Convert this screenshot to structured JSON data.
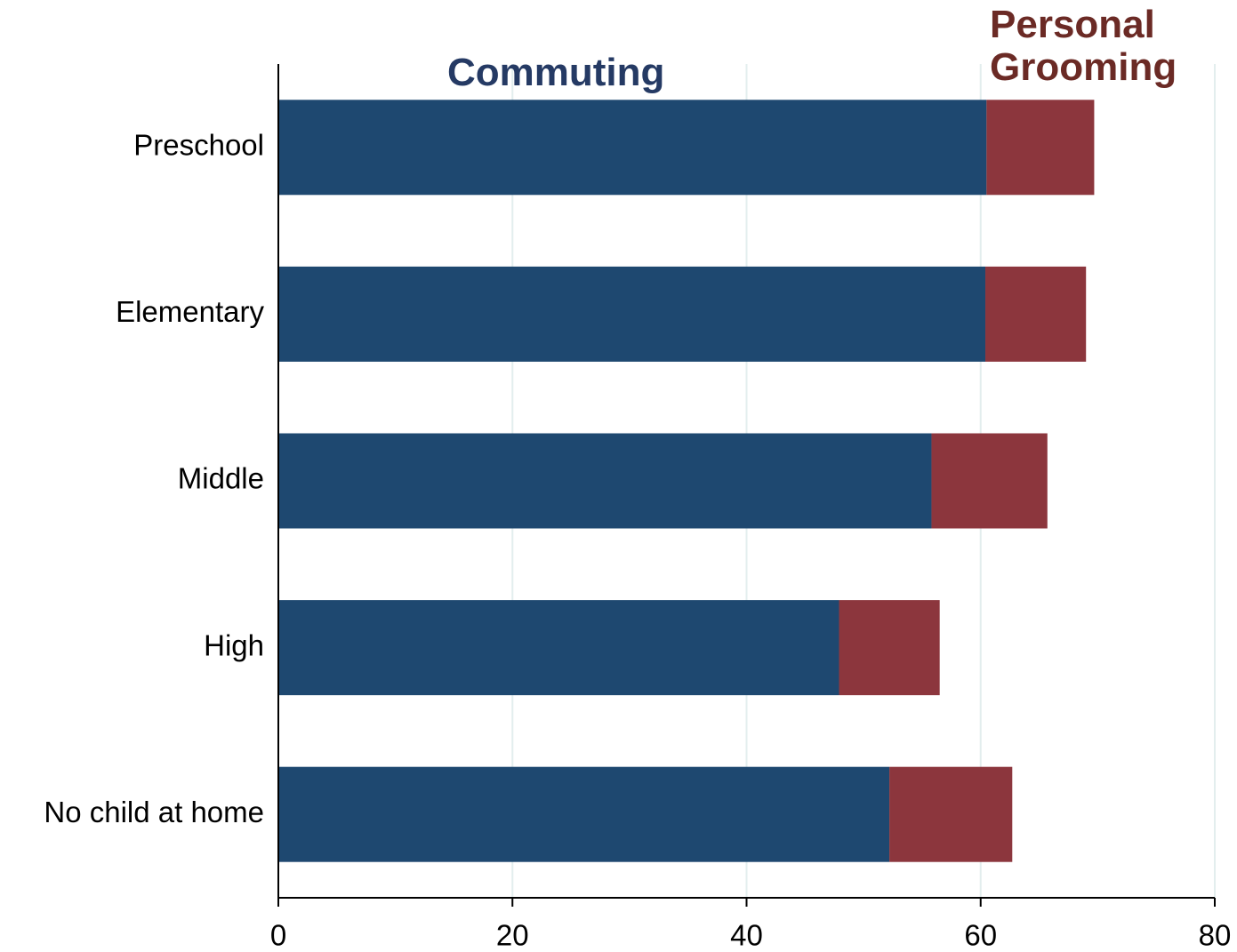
{
  "chart_data": {
    "type": "stacked-barh",
    "categories": [
      "Preschool",
      "Elementary",
      "Middle",
      "High",
      "No child at home"
    ],
    "series": [
      {
        "name": "Commuting",
        "color": "#1e4870",
        "values": [
          60.5,
          60.4,
          55.8,
          47.9,
          52.2
        ]
      },
      {
        "name": "Personal Grooming",
        "color": "#8c363d",
        "values": [
          9.2,
          8.6,
          9.9,
          8.6,
          10.5
        ]
      }
    ],
    "label_colors": [
      "#253a64",
      "#6b2a25"
    ],
    "xlim": [
      0,
      80
    ],
    "xticks": [
      0,
      20,
      40,
      60,
      80
    ],
    "grid": true
  }
}
